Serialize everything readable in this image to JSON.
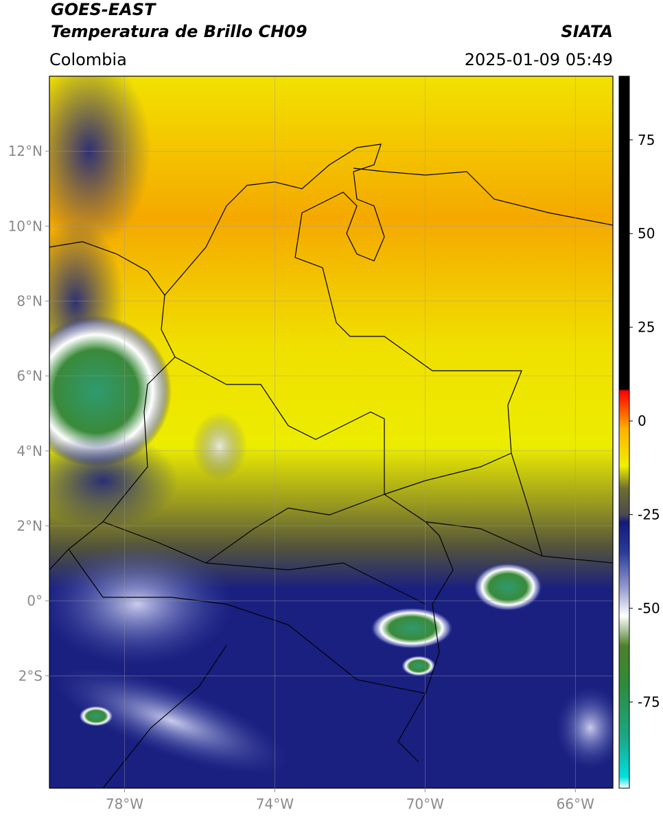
{
  "header": {
    "source": "GOES-EAST",
    "product": "Temperatura de Brillo CH09",
    "agency": "SIATA",
    "region": "Colombia",
    "datetime": "2025-01-09 05:49"
  },
  "map": {
    "xlim": [
      -80,
      -65
    ],
    "ylim": [
      -5,
      14
    ],
    "grid": true,
    "xticks": [
      {
        "value": -78,
        "label": "78°W"
      },
      {
        "value": -74,
        "label": "74°W"
      },
      {
        "value": -70,
        "label": "70°W"
      },
      {
        "value": -66,
        "label": "66°W"
      }
    ],
    "yticks": [
      {
        "value": 12,
        "label": "12°N"
      },
      {
        "value": 10,
        "label": "10°N"
      },
      {
        "value": 8,
        "label": "8°N"
      },
      {
        "value": 6,
        "label": "6°N"
      },
      {
        "value": 4,
        "label": "4°N"
      },
      {
        "value": 2,
        "label": "2°N"
      },
      {
        "value": 0,
        "label": "0°"
      },
      {
        "value": -2,
        "label": "2°S"
      }
    ]
  },
  "colorbar": {
    "lim": [
      -98,
      92
    ],
    "ticks": [
      75,
      50,
      25,
      0,
      -25,
      -50,
      -75
    ],
    "colormap": [
      {
        "value": -98,
        "color": "#ffffff"
      },
      {
        "value": -95,
        "color": "#00e0e0"
      },
      {
        "value": -85,
        "color": "#1aa88a"
      },
      {
        "value": -70,
        "color": "#2e8b3a"
      },
      {
        "value": -60,
        "color": "#4f7f2c"
      },
      {
        "value": -52,
        "color": "#ffffff"
      },
      {
        "value": -45,
        "color": "#9aa0d0"
      },
      {
        "value": -35,
        "color": "#2a3a9a"
      },
      {
        "value": -27,
        "color": "#141a7a"
      },
      {
        "value": -25,
        "color": "#4a4a50"
      },
      {
        "value": -18,
        "color": "#6e6e30"
      },
      {
        "value": -12,
        "color": "#f0f000"
      },
      {
        "value": -2,
        "color": "#ffb000"
      },
      {
        "value": 2,
        "color": "#ff6600"
      },
      {
        "value": 8,
        "color": "#ff0000"
      },
      {
        "value": 8.5,
        "color": "#000000"
      },
      {
        "value": 92,
        "color": "#000000"
      }
    ]
  }
}
